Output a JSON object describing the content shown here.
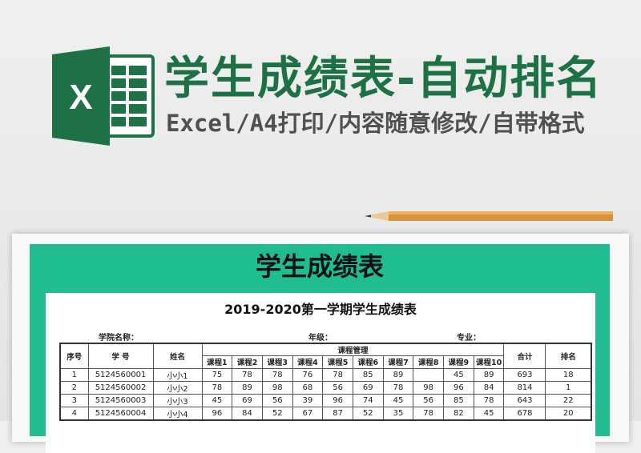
{
  "banner": {
    "title": "学生成绩表-自动排名",
    "subtitle": "Excel/A4打印/内容随意修改/自带格式",
    "logo_letter": "X"
  },
  "colors": {
    "green": "#1e7145",
    "panel": "#1fbd8f"
  },
  "sheet": {
    "heading": "学生成绩表",
    "title": "2019-2020第一学期学生成绩表",
    "labels": {
      "college": "学院名称：",
      "grade": "年级：",
      "major": "专业："
    },
    "columns": {
      "seq": "序号",
      "id": "学 号",
      "name": "姓名",
      "group": "课程管理",
      "courses": [
        "课程1",
        "课程2",
        "课程3",
        "课程4",
        "课程5",
        "课程6",
        "课程7",
        "课程8",
        "课程9",
        "课程10"
      ],
      "total": "合计",
      "rank": "排名"
    },
    "rows": [
      {
        "seq": "1",
        "id": "5124560001",
        "name": "小小1",
        "scores": [
          "75",
          "78",
          "78",
          "76",
          "78",
          "85",
          "89",
          "",
          "45",
          "89"
        ],
        "total": "693",
        "rank": "18"
      },
      {
        "seq": "2",
        "id": "5124560002",
        "name": "小小2",
        "scores": [
          "78",
          "89",
          "98",
          "68",
          "56",
          "69",
          "78",
          "98",
          "96",
          "84"
        ],
        "total": "814",
        "rank": "1"
      },
      {
        "seq": "3",
        "id": "5124560003",
        "name": "小小3",
        "scores": [
          "45",
          "69",
          "56",
          "39",
          "96",
          "74",
          "45",
          "56",
          "85",
          "78"
        ],
        "total": "643",
        "rank": "22"
      },
      {
        "seq": "4",
        "id": "5124560004",
        "name": "小小4",
        "scores": [
          "96",
          "84",
          "52",
          "67",
          "87",
          "52",
          "35",
          "78",
          "82",
          "45"
        ],
        "total": "678",
        "rank": "20"
      }
    ]
  }
}
